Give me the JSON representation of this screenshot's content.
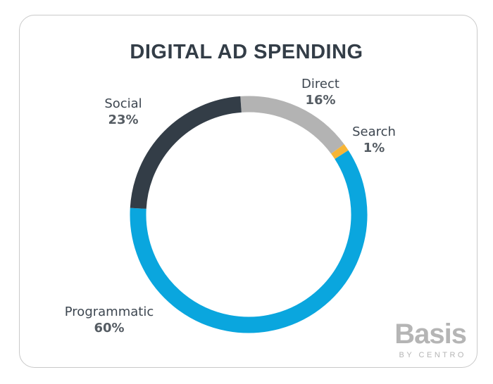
{
  "chart_data": {
    "type": "pie",
    "style": "donut",
    "title": "DIGITAL AD SPENDING",
    "slices": [
      {
        "label": "Direct",
        "value": 16,
        "display": "16%",
        "color": "#b3b3b3"
      },
      {
        "label": "Search",
        "value": 1,
        "display": "1%",
        "color": "#f7b536"
      },
      {
        "label": "Programmatic",
        "value": 60,
        "display": "60%",
        "color": "#0aa6de"
      },
      {
        "label": "Social",
        "value": 23,
        "display": "23%",
        "color": "#333d47"
      }
    ]
  },
  "logo": {
    "name": "Basis",
    "tagline": "BY CENTRO"
  }
}
